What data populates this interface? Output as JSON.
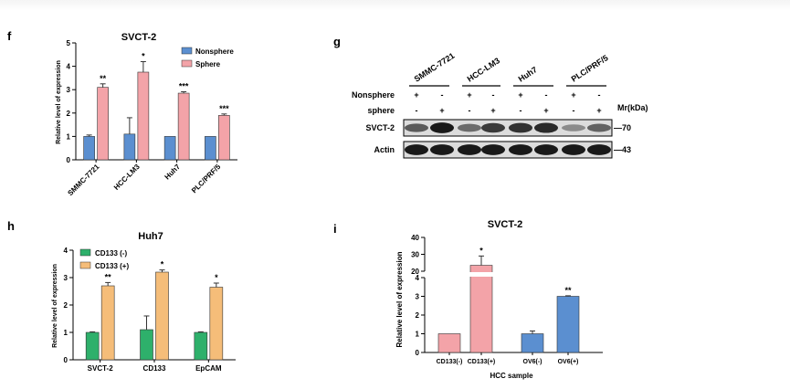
{
  "panels": {
    "f": {
      "letter": "f",
      "title": "SVCT-2",
      "ylabel": "Relative level of expression",
      "legend": [
        "Nonsphere",
        "Sphere"
      ]
    },
    "g": {
      "letter": "g",
      "cell_lines": [
        "SMMC-7721",
        "HCC-LM3",
        "Huh7",
        "PLC/PRF/5"
      ],
      "row_labels": [
        "Nonsphere",
        "sphere"
      ],
      "nonsphere_signs": [
        "+",
        "-",
        "+",
        "-",
        "+",
        "-",
        "+",
        "-"
      ],
      "sphere_signs": [
        "-",
        "+",
        "-",
        "+",
        "-",
        "+",
        "-",
        "+"
      ],
      "mr_label": "Mr(kDa)",
      "blots": [
        {
          "name": "SVCT-2",
          "mw": "70",
          "intensities": [
            0.55,
            0.95,
            0.45,
            0.75,
            0.8,
            0.85,
            0.25,
            0.5
          ]
        },
        {
          "name": "Actin",
          "mw": "43",
          "intensities": [
            0.95,
            0.95,
            0.95,
            0.95,
            0.95,
            0.95,
            0.95,
            0.95
          ]
        }
      ]
    },
    "h": {
      "letter": "h",
      "title": "Huh7",
      "ylabel": "Relative level of expression",
      "legend": [
        "CD133 (-)",
        "CD133 (+)"
      ]
    },
    "i": {
      "letter": "i",
      "title": "SVCT-2",
      "ylabel": "Relative level of expression",
      "xlabel": "HCC sample"
    }
  },
  "chart_data": [
    {
      "panel": "f",
      "type": "bar",
      "title": "SVCT-2",
      "ylabel": "Relative level of expression",
      "xlabel": "",
      "categories": [
        "SMMC-7721",
        "HCC-LM3",
        "Huh7",
        "PLC/PRF/5"
      ],
      "series": [
        {
          "name": "Nonsphere",
          "values": [
            1.0,
            1.1,
            1.0,
            1.0
          ],
          "errors": [
            0.06,
            0.7,
            0.0,
            0.0
          ]
        },
        {
          "name": "Sphere",
          "values": [
            3.1,
            3.75,
            2.85,
            1.9
          ],
          "errors": [
            0.15,
            0.45,
            0.06,
            0.06
          ]
        }
      ],
      "significance": [
        "**",
        "*",
        "***",
        "***"
      ],
      "ylim": [
        0,
        5
      ],
      "yticks": [
        0,
        1,
        2,
        3,
        4,
        5
      ],
      "colors": {
        "Nonsphere": "#5b8fd0",
        "Sphere": "#f3a3a8"
      },
      "legend_position": "top-right"
    },
    {
      "panel": "h",
      "type": "bar",
      "title": "Huh7",
      "ylabel": "Relative level of expression",
      "xlabel": "",
      "categories": [
        "SVCT-2",
        "CD133",
        "EpCAM"
      ],
      "series": [
        {
          "name": "CD133 (-)",
          "values": [
            1.0,
            1.1,
            1.0
          ],
          "errors": [
            0.02,
            0.5,
            0.02
          ]
        },
        {
          "name": "CD133 (+)",
          "values": [
            2.7,
            3.2,
            2.65
          ],
          "errors": [
            0.12,
            0.08,
            0.15
          ]
        }
      ],
      "significance": [
        "**",
        "*",
        "*"
      ],
      "ylim": [
        0,
        4
      ],
      "yticks": [
        0,
        1,
        2,
        3,
        4
      ],
      "colors": {
        "CD133 (-)": "#2eb06b",
        "CD133 (+)": "#f5bd79"
      },
      "legend_position": "top-left"
    },
    {
      "panel": "i",
      "type": "bar",
      "title": "SVCT-2",
      "ylabel": "Relative level of expression",
      "xlabel": "HCC sample",
      "categories": [
        "CD133(-)",
        "CD133(+)",
        "OV6(-)",
        "OV6(+)"
      ],
      "values": [
        1.0,
        23.5,
        1.0,
        3.0
      ],
      "errors": [
        0.0,
        5.5,
        0.15,
        0.03
      ],
      "significance": [
        "",
        "*",
        "",
        "**"
      ],
      "ylim": [
        0,
        40
      ],
      "axis_break": [
        4,
        20
      ],
      "yticks": [
        0,
        1,
        2,
        3,
        4,
        20,
        30,
        40
      ],
      "colors": [
        "#f3a3a8",
        "#f3a3a8",
        "#5b8fd0",
        "#5b8fd0"
      ]
    }
  ]
}
